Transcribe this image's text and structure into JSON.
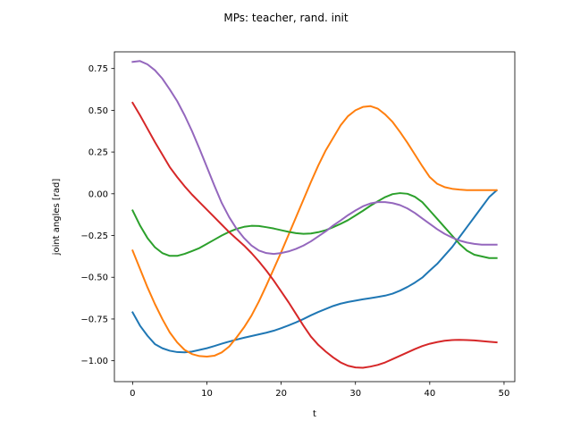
{
  "chart_data": {
    "type": "line",
    "title": "MPs: teacher, rand. init",
    "xlabel": "t",
    "ylabel": "joint angles [rad]",
    "xlim": [
      -2.45,
      51.45
    ],
    "ylim": [
      -1.125,
      0.85
    ],
    "xticks": [
      0,
      10,
      20,
      30,
      40,
      50
    ],
    "yticks": [
      -1.0,
      -0.75,
      -0.5,
      -0.25,
      0.0,
      0.25,
      0.5,
      0.75
    ],
    "xtick_labels": [
      "0",
      "10",
      "20",
      "30",
      "40",
      "50"
    ],
    "ytick_labels": [
      "−1.00",
      "−0.75",
      "−0.50",
      "−0.25",
      "0.00",
      "0.25",
      "0.50",
      "0.75"
    ],
    "grid": false,
    "x": [
      0,
      1,
      2,
      3,
      4,
      5,
      6,
      7,
      8,
      9,
      10,
      11,
      12,
      13,
      14,
      15,
      16,
      17,
      18,
      19,
      20,
      21,
      22,
      23,
      24,
      25,
      26,
      27,
      28,
      29,
      30,
      31,
      32,
      33,
      34,
      35,
      36,
      37,
      38,
      39,
      40,
      41,
      42,
      43,
      44,
      45,
      46,
      47,
      48,
      49
    ],
    "series": [
      {
        "color": "#1f77b4",
        "values": [
          -0.71,
          -0.79,
          -0.85,
          -0.9,
          -0.925,
          -0.94,
          -0.948,
          -0.95,
          -0.945,
          -0.935,
          -0.925,
          -0.912,
          -0.898,
          -0.885,
          -0.873,
          -0.862,
          -0.852,
          -0.842,
          -0.832,
          -0.82,
          -0.805,
          -0.788,
          -0.77,
          -0.75,
          -0.728,
          -0.708,
          -0.69,
          -0.672,
          -0.658,
          -0.648,
          -0.64,
          -0.632,
          -0.625,
          -0.618,
          -0.61,
          -0.598,
          -0.58,
          -0.558,
          -0.532,
          -0.502,
          -0.46,
          -0.42,
          -0.37,
          -0.32,
          -0.26,
          -0.2,
          -0.14,
          -0.08,
          -0.02,
          0.02
        ]
      },
      {
        "color": "#ff7f0e",
        "values": [
          -0.34,
          -0.45,
          -0.56,
          -0.66,
          -0.75,
          -0.83,
          -0.89,
          -0.935,
          -0.96,
          -0.972,
          -0.975,
          -0.97,
          -0.95,
          -0.915,
          -0.86,
          -0.8,
          -0.73,
          -0.645,
          -0.55,
          -0.45,
          -0.35,
          -0.245,
          -0.14,
          -0.035,
          0.07,
          0.17,
          0.26,
          0.335,
          0.41,
          0.465,
          0.5,
          0.52,
          0.525,
          0.51,
          0.475,
          0.43,
          0.37,
          0.305,
          0.235,
          0.165,
          0.1,
          0.06,
          0.04,
          0.03,
          0.025,
          0.022,
          0.022,
          0.022,
          0.022,
          0.022
        ]
      },
      {
        "color": "#2ca02c",
        "values": [
          -0.1,
          -0.19,
          -0.265,
          -0.32,
          -0.355,
          -0.372,
          -0.372,
          -0.36,
          -0.343,
          -0.325,
          -0.3,
          -0.275,
          -0.25,
          -0.228,
          -0.21,
          -0.198,
          -0.192,
          -0.193,
          -0.2,
          -0.208,
          -0.218,
          -0.228,
          -0.236,
          -0.24,
          -0.238,
          -0.23,
          -0.218,
          -0.2,
          -0.18,
          -0.158,
          -0.13,
          -0.102,
          -0.072,
          -0.045,
          -0.02,
          -0.002,
          0.004,
          0.0,
          -0.018,
          -0.05,
          -0.1,
          -0.15,
          -0.2,
          -0.25,
          -0.3,
          -0.34,
          -0.365,
          -0.375,
          -0.385,
          -0.385
        ]
      },
      {
        "color": "#d62728",
        "values": [
          0.545,
          0.47,
          0.39,
          0.31,
          0.235,
          0.16,
          0.1,
          0.045,
          -0.005,
          -0.05,
          -0.095,
          -0.14,
          -0.185,
          -0.23,
          -0.27,
          -0.31,
          -0.355,
          -0.405,
          -0.46,
          -0.52,
          -0.585,
          -0.65,
          -0.72,
          -0.79,
          -0.855,
          -0.905,
          -0.945,
          -0.98,
          -1.01,
          -1.03,
          -1.04,
          -1.042,
          -1.035,
          -1.025,
          -1.01,
          -0.99,
          -0.97,
          -0.95,
          -0.93,
          -0.912,
          -0.898,
          -0.888,
          -0.88,
          -0.876,
          -0.875,
          -0.876,
          -0.878,
          -0.882,
          -0.886,
          -0.89
        ]
      },
      {
        "color": "#9467bd",
        "values": [
          0.79,
          0.795,
          0.775,
          0.74,
          0.69,
          0.625,
          0.555,
          0.47,
          0.375,
          0.27,
          0.16,
          0.05,
          -0.055,
          -0.14,
          -0.21,
          -0.265,
          -0.31,
          -0.34,
          -0.355,
          -0.36,
          -0.355,
          -0.345,
          -0.33,
          -0.31,
          -0.285,
          -0.255,
          -0.225,
          -0.19,
          -0.16,
          -0.128,
          -0.1,
          -0.075,
          -0.058,
          -0.05,
          -0.05,
          -0.056,
          -0.068,
          -0.088,
          -0.115,
          -0.148,
          -0.18,
          -0.212,
          -0.24,
          -0.262,
          -0.28,
          -0.292,
          -0.3,
          -0.305,
          -0.305,
          -0.305
        ]
      }
    ]
  }
}
